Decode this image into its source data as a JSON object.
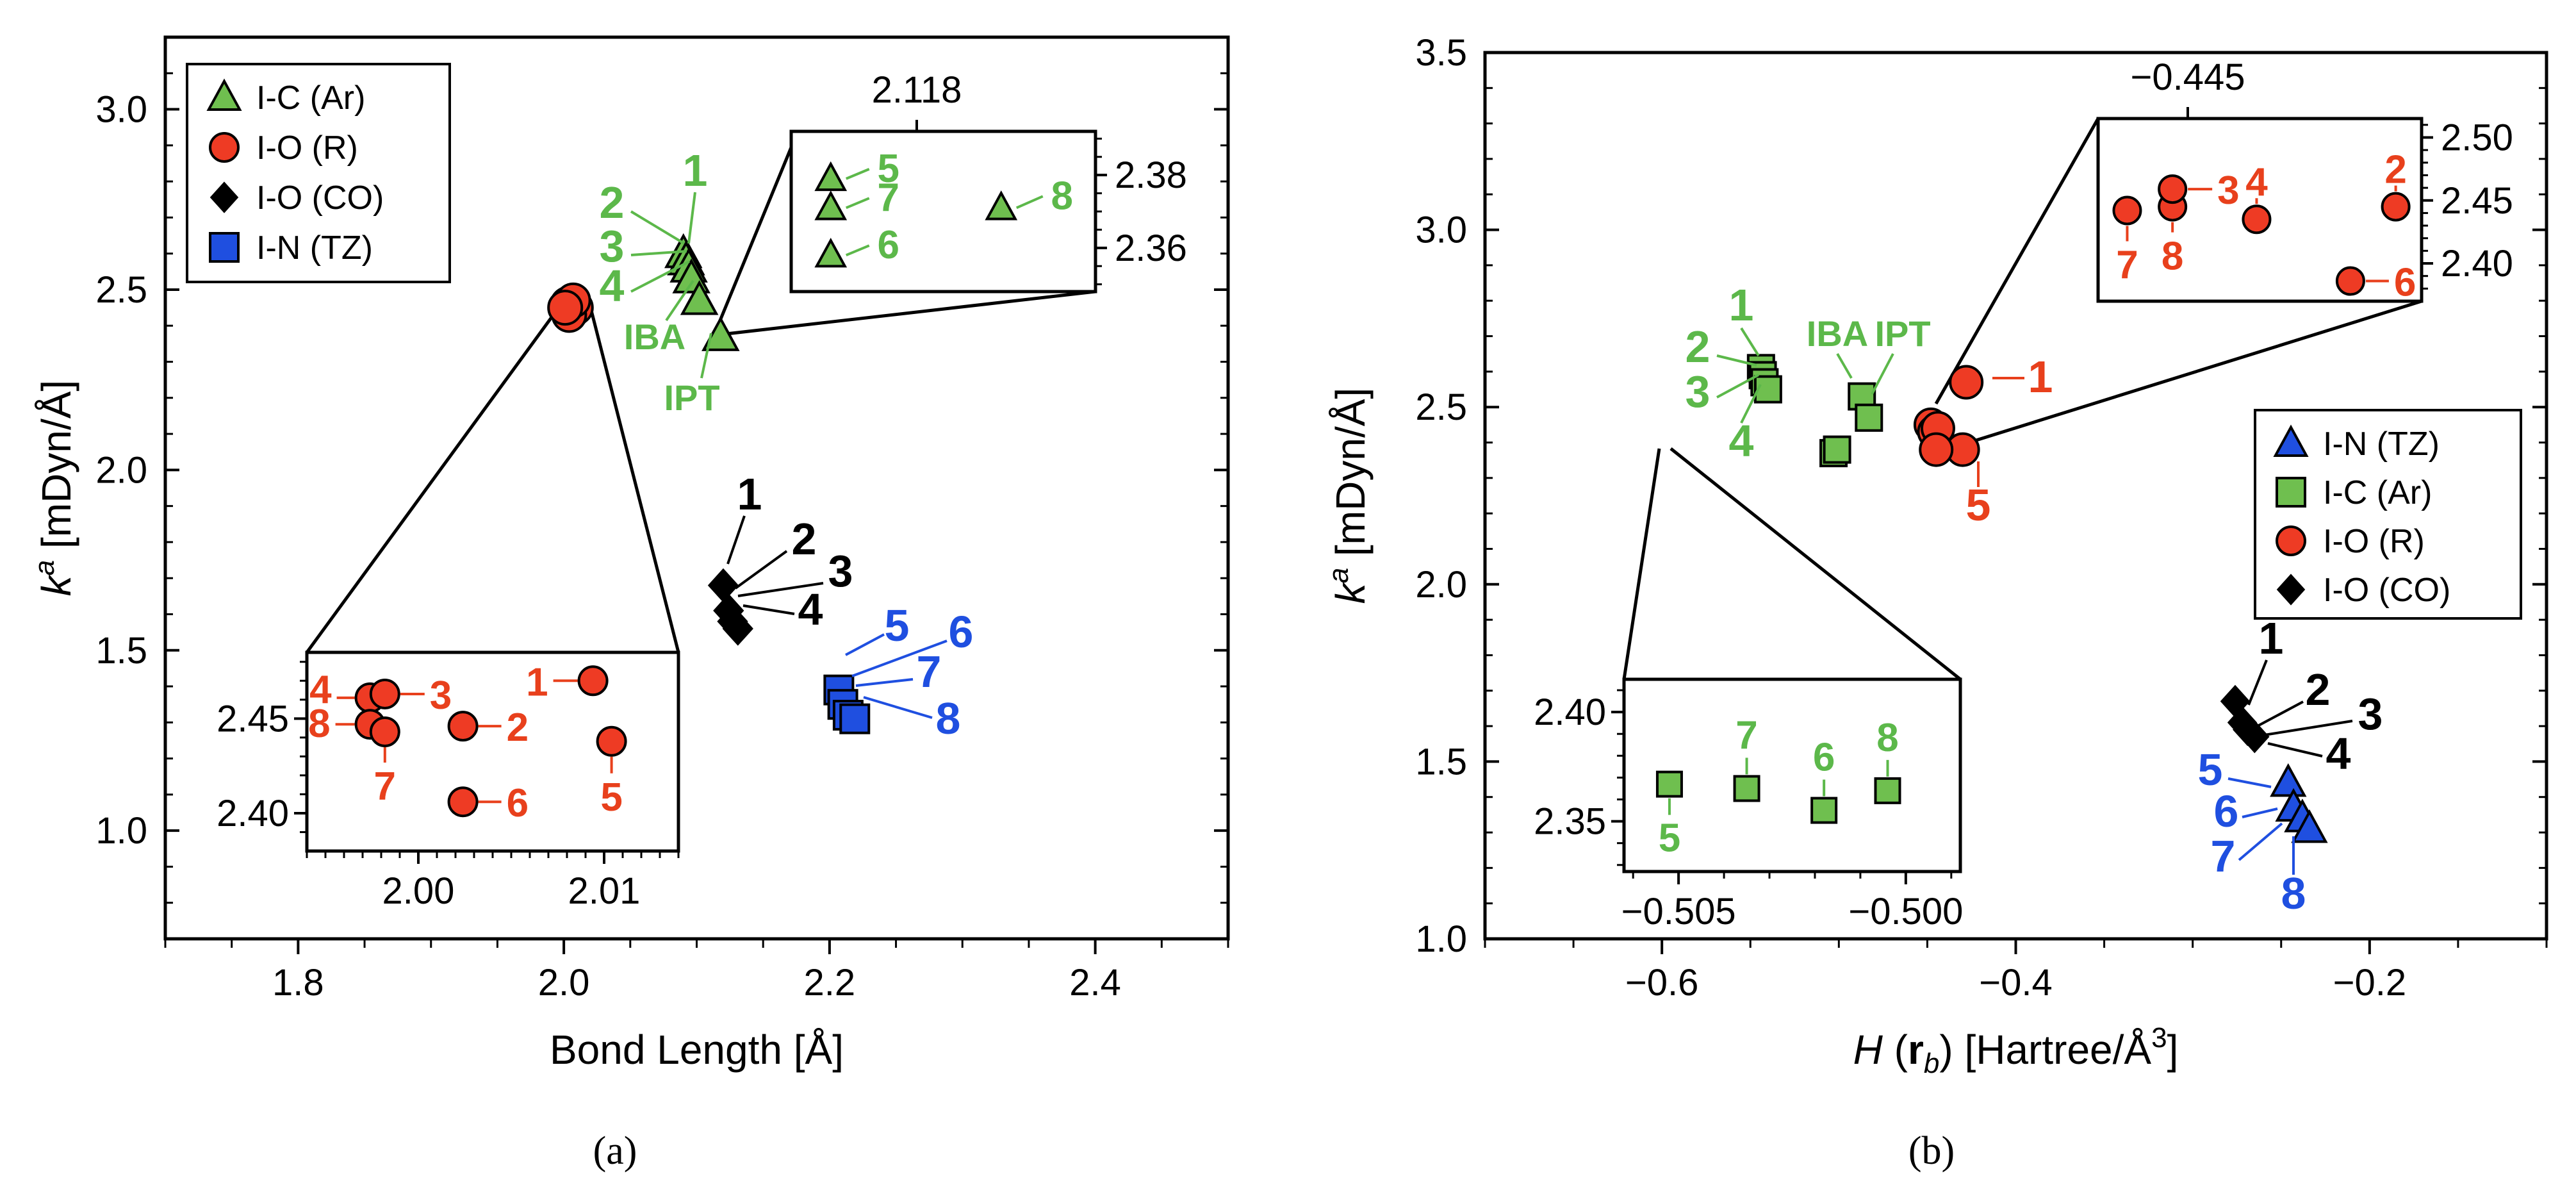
{
  "colors": {
    "green_fill": "#6FBF4F",
    "green_text": "#5CB84A",
    "red_fill": "#EE3B24",
    "red_text": "#E8401C",
    "blue_fill": "#1F4FE0",
    "blue_text": "#1F4FE0",
    "black": "#000000"
  },
  "chart_data": [
    {
      "id": "a",
      "type": "scatter",
      "caption": "(a)",
      "xlabel": "Bond Length [Å]",
      "ylabel_main": "k",
      "ylabel_sup": "a",
      "ylabel_rest": " [mDyn/Å]",
      "xlim": [
        1.7,
        2.5
      ],
      "ylim": [
        0.7,
        3.2
      ],
      "xticks": [
        "1.8",
        "2.0",
        "2.2",
        "2.4"
      ],
      "yticks": [
        "1.0",
        "1.5",
        "2.0",
        "2.5",
        "3.0"
      ],
      "legend": [
        {
          "marker": "triangle",
          "color": "green",
          "label": "I-C (Ar)"
        },
        {
          "marker": "circle",
          "color": "red",
          "label": "I-O (R)"
        },
        {
          "marker": "diamond",
          "color": "black",
          "label": "I-O (CO)"
        },
        {
          "marker": "square",
          "color": "blue",
          "label": "I-N  (TZ)"
        }
      ],
      "series": [
        {
          "name": "I-C (Ar)",
          "marker": "triangle",
          "color": "green",
          "points": [
            {
              "x": 2.09,
              "y": 2.6,
              "label": "1"
            },
            {
              "x": 2.092,
              "y": 2.58,
              "label": "2"
            },
            {
              "x": 2.094,
              "y": 2.56,
              "label": "3"
            },
            {
              "x": 2.096,
              "y": 2.53,
              "label": "4"
            },
            {
              "x": 2.102,
              "y": 2.47,
              "label": "IBA"
            },
            {
              "x": 2.118,
              "y": 2.37,
              "label": "IPT"
            }
          ]
        },
        {
          "name": "I-O (R)",
          "marker": "circle",
          "color": "red",
          "points": [
            {
              "x": 2.003,
              "y": 2.46
            },
            {
              "x": 2.006,
              "y": 2.44
            },
            {
              "x": 2.009,
              "y": 2.45
            },
            {
              "x": 2.004,
              "y": 2.43
            },
            {
              "x": 2.007,
              "y": 2.47
            },
            {
              "x": 2.001,
              "y": 2.45
            }
          ]
        },
        {
          "name": "I-O (CO)",
          "marker": "diamond",
          "color": "black",
          "points": [
            {
              "x": 2.12,
              "y": 1.68,
              "label": "1"
            },
            {
              "x": 2.124,
              "y": 1.61,
              "label": "2"
            },
            {
              "x": 2.127,
              "y": 1.58,
              "label": "3"
            },
            {
              "x": 2.131,
              "y": 1.56,
              "label": "4"
            }
          ]
        },
        {
          "name": "I-N (TZ)",
          "marker": "square",
          "color": "blue",
          "points": [
            {
              "x": 2.207,
              "y": 1.39,
              "label": "5"
            },
            {
              "x": 2.21,
              "y": 1.35,
              "label": "6"
            },
            {
              "x": 2.214,
              "y": 1.32,
              "label": "7"
            },
            {
              "x": 2.219,
              "y": 1.31,
              "label": "8"
            }
          ]
        }
      ],
      "insets": [
        {
          "name": "I-C (Ar) zoom",
          "xtop_label": "2.118",
          "yticks": [
            "2.36",
            "2.38"
          ],
          "ylim": [
            2.348,
            2.392
          ],
          "points": [
            {
              "xr": 0.13,
              "y": 2.379,
              "label": "5",
              "marker": "triangle",
              "color": "green"
            },
            {
              "xr": 0.13,
              "y": 2.371,
              "label": "7",
              "marker": "triangle",
              "color": "green"
            },
            {
              "xr": 0.13,
              "y": 2.358,
              "label": "6",
              "marker": "triangle",
              "color": "green"
            },
            {
              "xr": 0.69,
              "y": 2.371,
              "label": "8",
              "marker": "triangle",
              "color": "green"
            }
          ]
        },
        {
          "name": "I-O (R) zoom",
          "xlim": [
            1.994,
            2.014
          ],
          "xticks": [
            "2.00",
            "2.01"
          ],
          "yticks": [
            "2.40",
            "2.45"
          ],
          "ylim": [
            2.38,
            2.485
          ],
          "points": [
            {
              "x": 1.9974,
              "y": 2.461,
              "label": "4"
            },
            {
              "x": 1.9982,
              "y": 2.463,
              "label": "3"
            },
            {
              "x": 2.0094,
              "y": 2.47,
              "label": "1"
            },
            {
              "x": 1.9974,
              "y": 2.447,
              "label": "8"
            },
            {
              "x": 1.9982,
              "y": 2.443,
              "label": "7"
            },
            {
              "x": 2.0024,
              "y": 2.446,
              "label": "2"
            },
            {
              "x": 2.0024,
              "y": 2.406,
              "label": "6"
            },
            {
              "x": 2.0104,
              "y": 2.438,
              "label": "5"
            }
          ]
        }
      ]
    },
    {
      "id": "b",
      "type": "scatter",
      "caption": "(b)",
      "xlabel_main": "H",
      "xlabel_paren_open": " (",
      "xlabel_bold": "r",
      "xlabel_sub": "b",
      "xlabel_rest": ") [Hartree/Å",
      "xlabel_sup": "3",
      "xlabel_close": "]",
      "ylabel_main": "k",
      "ylabel_sup": "a",
      "ylabel_rest": " [mDyn/Å]",
      "xlim": [
        -0.7,
        -0.1
      ],
      "ylim": [
        1.0,
        3.5
      ],
      "xticks": [
        "-0.6",
        "-0.4",
        "-0.2"
      ],
      "yticks": [
        "1.0",
        "1.5",
        "2.0",
        "2.5",
        "3.0",
        "3.5"
      ],
      "legend": [
        {
          "marker": "triangle",
          "color": "blue",
          "label": "I-N (TZ)"
        },
        {
          "marker": "square",
          "color": "green",
          "label": "I-C (Ar)"
        },
        {
          "marker": "circle",
          "color": "red",
          "label": "I-O (R)"
        },
        {
          "marker": "diamond",
          "color": "black",
          "label": "I-O (CO)"
        }
      ],
      "series": [
        {
          "name": "I-C (Ar)",
          "marker": "square",
          "color": "green",
          "points": [
            {
              "x": -0.544,
              "y": 2.61,
              "label": "1"
            },
            {
              "x": -0.543,
              "y": 2.59,
              "label": "2"
            },
            {
              "x": -0.542,
              "y": 2.57,
              "label": "3"
            },
            {
              "x": -0.54,
              "y": 2.55,
              "label": "4"
            },
            {
              "x": -0.487,
              "y": 2.53,
              "label": "IBA"
            },
            {
              "x": -0.483,
              "y": 2.47,
              "label": "IPT"
            },
            {
              "x": -0.503,
              "y": 2.37
            },
            {
              "x": -0.501,
              "y": 2.38
            }
          ]
        },
        {
          "name": "I-O (R)",
          "marker": "circle",
          "color": "red",
          "points": [
            {
              "x": -0.428,
              "y": 2.57,
              "label": "1"
            },
            {
              "x": -0.43,
              "y": 2.38,
              "label": "5"
            },
            {
              "x": -0.448,
              "y": 2.45
            },
            {
              "x": -0.446,
              "y": 2.43
            },
            {
              "x": -0.444,
              "y": 2.44
            },
            {
              "x": -0.445,
              "y": 2.38
            }
          ]
        },
        {
          "name": "I-O (CO)",
          "marker": "diamond",
          "color": "black",
          "points": [
            {
              "x": -0.276,
              "y": 1.67,
              "label": "1"
            },
            {
              "x": -0.272,
              "y": 1.61,
              "label": "2"
            },
            {
              "x": -0.269,
              "y": 1.59,
              "label": "3"
            },
            {
              "x": -0.265,
              "y": 1.57,
              "label": "4"
            }
          ]
        },
        {
          "name": "I-N (TZ)",
          "marker": "triangle",
          "color": "blue",
          "points": [
            {
              "x": -0.246,
              "y": 1.44,
              "label": "5"
            },
            {
              "x": -0.243,
              "y": 1.37,
              "label": "6"
            },
            {
              "x": -0.238,
              "y": 1.34,
              "label": "7"
            },
            {
              "x": -0.234,
              "y": 1.31,
              "label": "8"
            }
          ]
        }
      ],
      "insets": [
        {
          "name": "I-O (R) zoom",
          "xtop_label": "-0.445",
          "yticks": [
            "2.40",
            "2.45",
            "2.50"
          ],
          "ylim": [
            2.37,
            2.515
          ],
          "points": [
            {
              "xr": 0.09,
              "y": 2.442,
              "label": "7"
            },
            {
              "xr": 0.23,
              "y": 2.445,
              "label": "8"
            },
            {
              "xr": 0.23,
              "y": 2.459,
              "label": "3"
            },
            {
              "xr": 0.49,
              "y": 2.435,
              "label": "4"
            },
            {
              "xr": 0.78,
              "y": 2.386,
              "label": "6"
            },
            {
              "xr": 0.92,
              "y": 2.445,
              "label": "2"
            }
          ]
        },
        {
          "name": "I-C (Ar) zoom",
          "xlim": [
            -0.5062,
            -0.4988
          ],
          "xticks": [
            "-0.505",
            "-0.500"
          ],
          "yticks": [
            "2.35",
            "2.40"
          ],
          "ylim": [
            2.327,
            2.415
          ],
          "points": [
            {
              "x": -0.5052,
              "y": 2.367,
              "label": "5"
            },
            {
              "x": -0.5035,
              "y": 2.365,
              "label": "7"
            },
            {
              "x": -0.5018,
              "y": 2.355,
              "label": "6"
            },
            {
              "x": -0.5004,
              "y": 2.364,
              "label": "8"
            }
          ]
        }
      ]
    }
  ]
}
